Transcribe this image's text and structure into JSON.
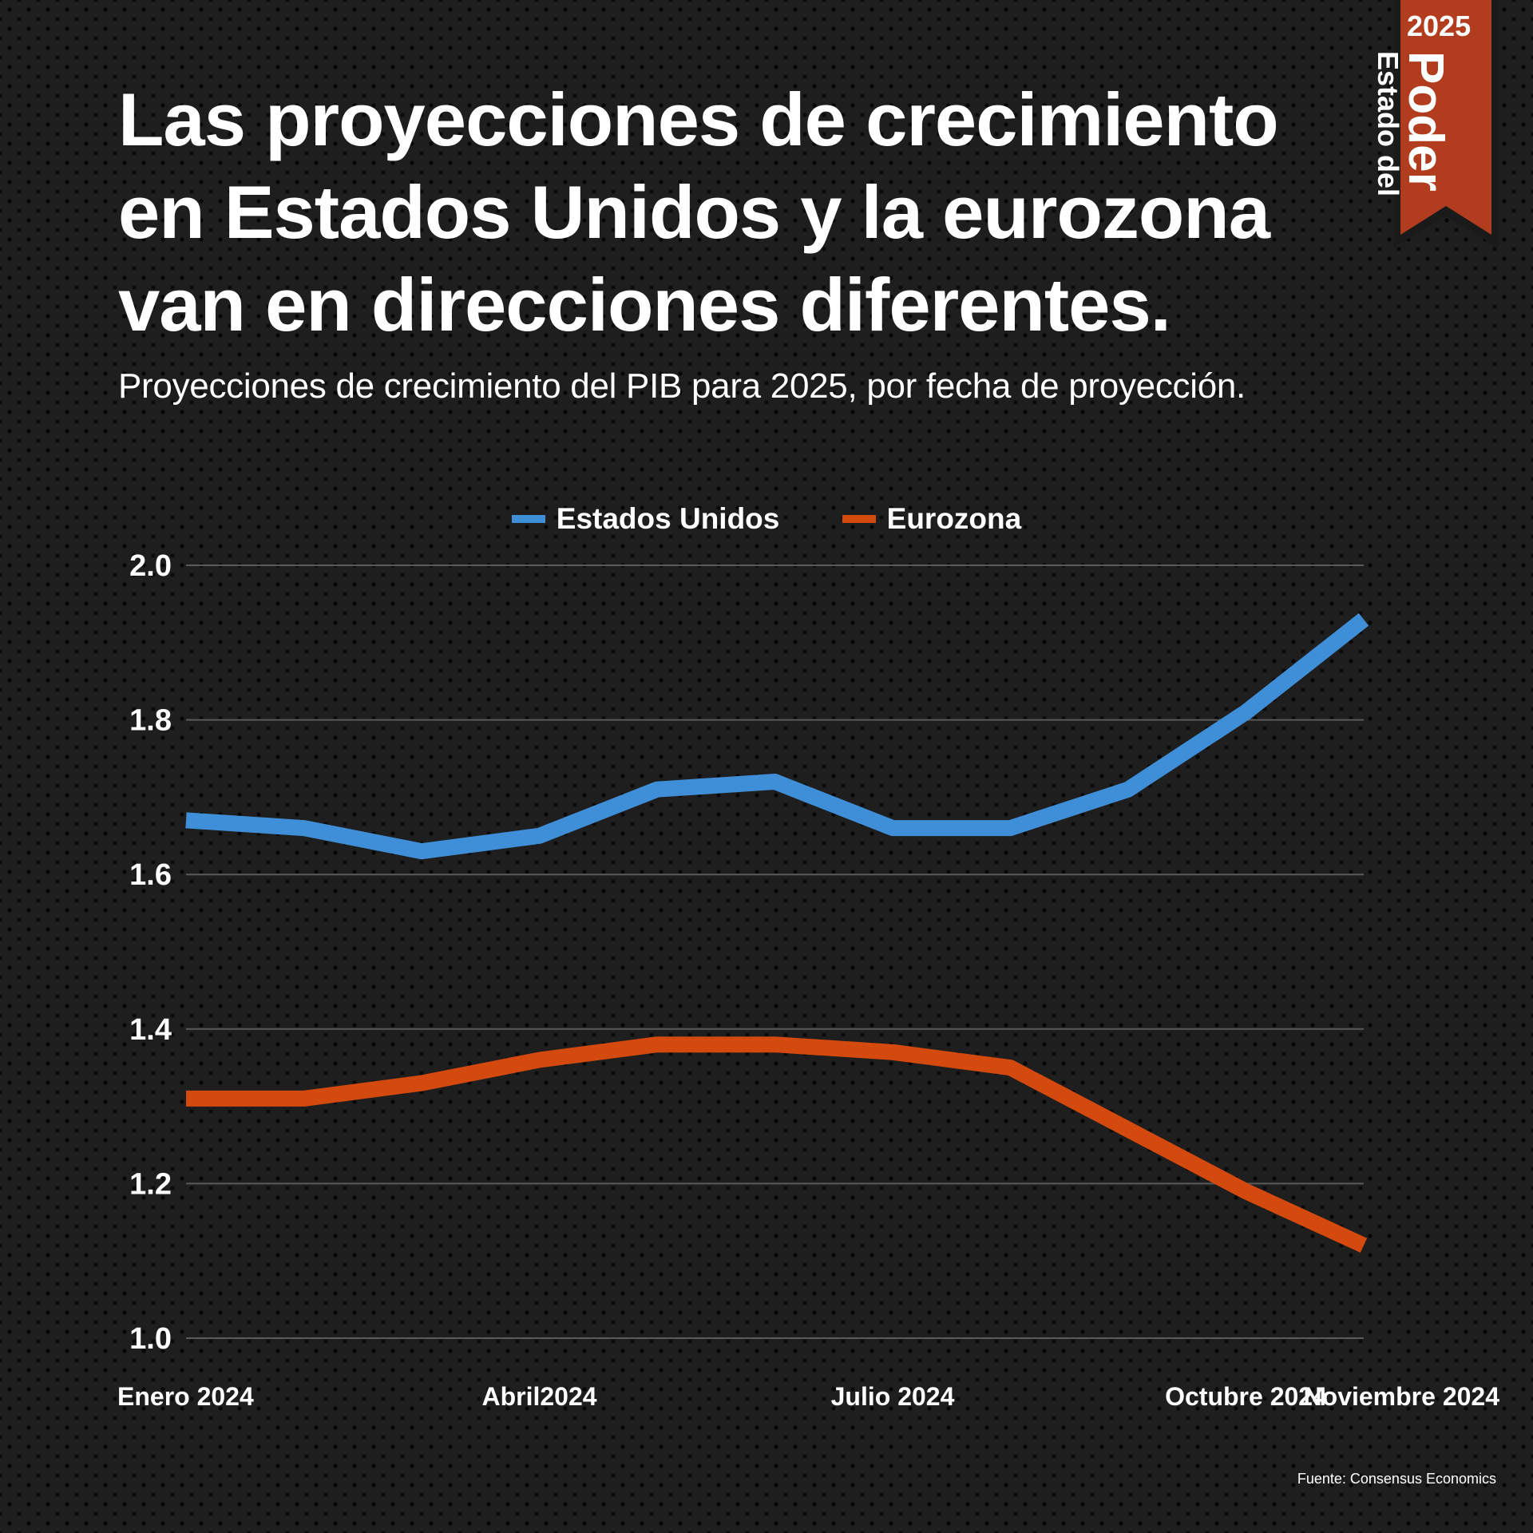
{
  "title": "Las proyecciones de crecimiento en Estados Unidos y la eurozona van en direcciones diferentes.",
  "subtitle": "Proyecciones de crecimiento del PIB para 2025, por fecha de proyección.",
  "badge": {
    "year": "2025",
    "line1": "Estado del",
    "line2": "Poder",
    "color": "#b23d1e"
  },
  "source": "Fuente: Consensus Economics",
  "colors": {
    "us": "#3f8fd8",
    "eu": "#d44a0e",
    "grid": "#5a5a5a"
  },
  "chart_data": {
    "type": "line",
    "x_labels": [
      "Enero 2024",
      "Abril2024",
      "Julio 2024",
      "Octubre 2024",
      "Noviembre 2024"
    ],
    "x_label_index": [
      0,
      3,
      6,
      9,
      10
    ],
    "y_ticks": [
      "2.0",
      "1.8",
      "1.6",
      "1.4",
      "1.2",
      "1.0"
    ],
    "ylim": [
      1.0,
      2.0
    ],
    "grid": true,
    "legend": "top-center",
    "series": [
      {
        "name": "Estados Unidos",
        "color": "#3f8fd8",
        "values": [
          1.67,
          1.66,
          1.63,
          1.65,
          1.71,
          1.72,
          1.66,
          1.66,
          1.71,
          1.81,
          1.93
        ]
      },
      {
        "name": "Eurozona",
        "color": "#d44a0e",
        "values": [
          1.31,
          1.31,
          1.33,
          1.36,
          1.38,
          1.38,
          1.37,
          1.35,
          1.27,
          1.19,
          1.12
        ]
      }
    ]
  }
}
